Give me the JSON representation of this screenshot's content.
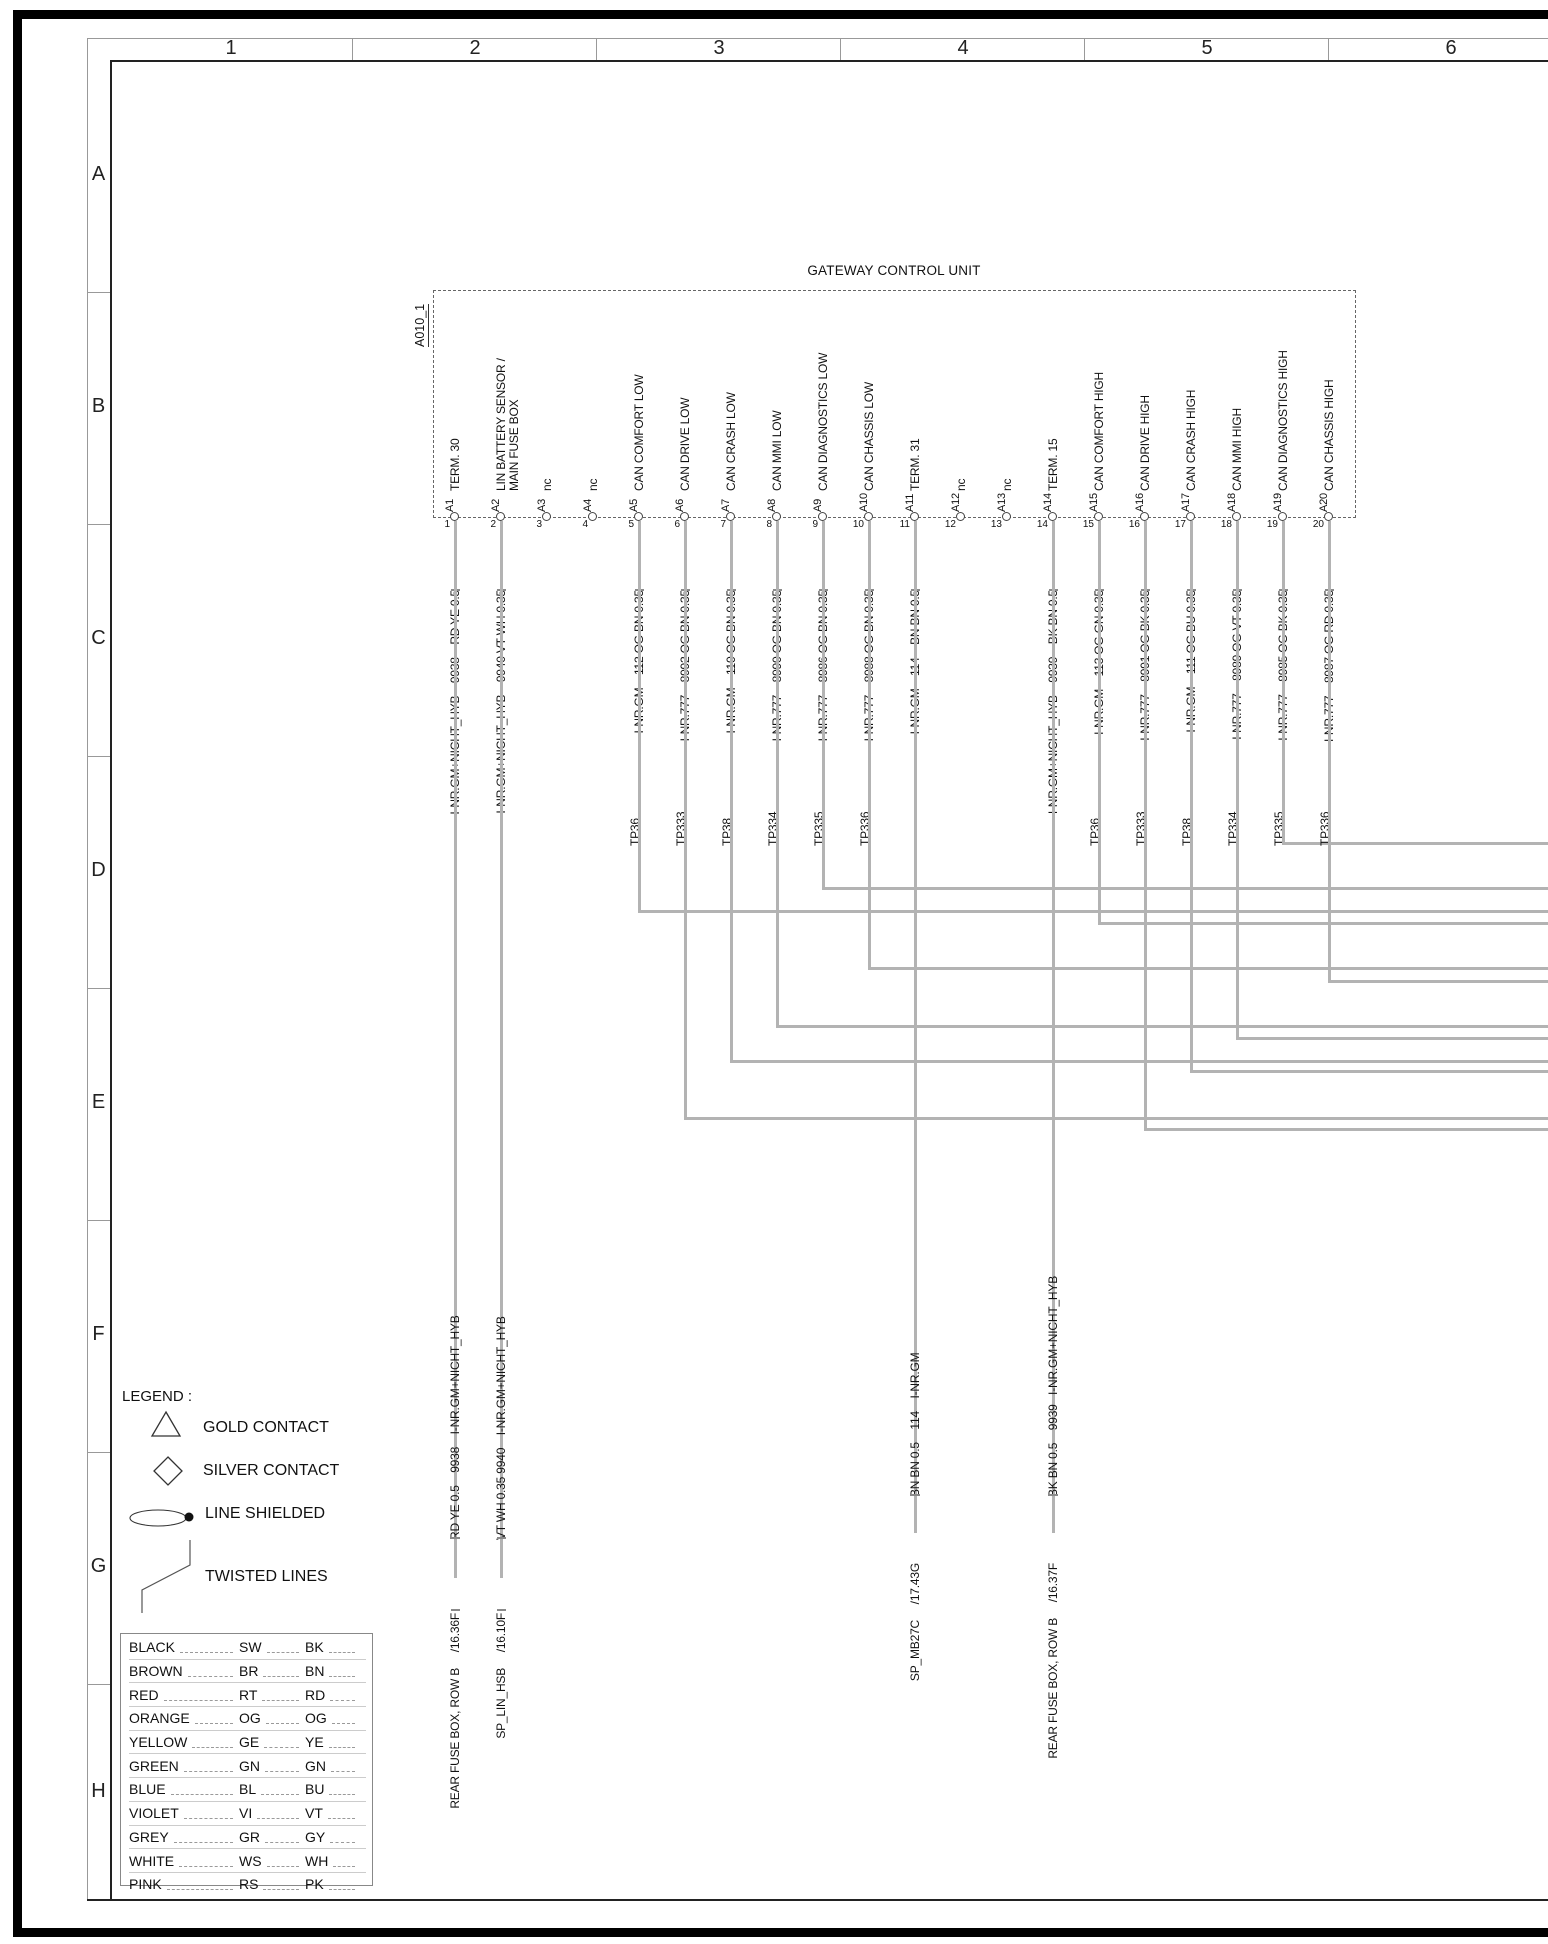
{
  "gateway": {
    "title": "GATEWAY CONTROL UNIT",
    "ref": "A010_1"
  },
  "ruler": {
    "columns": [
      "1",
      "2",
      "3",
      "4",
      "5",
      "6"
    ],
    "rows": [
      "A",
      "B",
      "C",
      "D",
      "E",
      "F",
      "G",
      "H"
    ]
  },
  "pins": [
    {
      "number": "1",
      "pin": "A1",
      "function": "TERM. 30",
      "wire_label": "I-NR.GM+NICHT_HYB    9938    RD YE 0.5",
      "tp": null,
      "lower_label": "RD YE 0.5    9938    I-NR.GM+NICHT_HYB",
      "destination": "REAR FUSE BOX, ROW B     /16.36F"
    },
    {
      "number": "2",
      "pin": "A2",
      "function": "LIN BATTERY SENSOR /\nMAIN FUSE BOX",
      "wire_label": "I-NR.GM+NICHT_HYB    9940 VT WH 0.35",
      "tp": null,
      "lower_label": "VT WH 0.35 9940    I-NR.GM+NICHT_HYB",
      "destination": "SP_LIN_HSB     /16.10F"
    },
    {
      "number": "3",
      "pin": "A3",
      "function": "nc",
      "wire_label": null,
      "tp": null,
      "lower_label": null,
      "destination": null
    },
    {
      "number": "4",
      "pin": "A4",
      "function": "nc",
      "wire_label": null,
      "tp": null,
      "lower_label": null,
      "destination": null
    },
    {
      "number": "5",
      "pin": "A5",
      "function": "CAN COMFORT LOW",
      "wire_label": "I-NR.GM    112 OG BN 0.35",
      "tp": "TP36",
      "lower_label": null,
      "destination": null
    },
    {
      "number": "6",
      "pin": "A6",
      "function": "CAN DRIVE LOW",
      "wire_label": "I-NR.777    8992 OG BN 0.35",
      "tp": "TP333",
      "lower_label": null,
      "destination": null
    },
    {
      "number": "7",
      "pin": "A7",
      "function": "CAN CRASH LOW",
      "wire_label": "I-NR.GM    110 OG BN 0.35",
      "tp": "TP38",
      "lower_label": null,
      "destination": null
    },
    {
      "number": "8",
      "pin": "A8",
      "function": "CAN MMI LOW",
      "wire_label": "I-NR.777    8990 OG BN 0.35",
      "tp": "TP334",
      "lower_label": null,
      "destination": null
    },
    {
      "number": "9",
      "pin": "A9",
      "function": "CAN DIAGNOSTICS LOW",
      "wire_label": "I-NR.777    8986 OG BN 0.35",
      "tp": "TP335",
      "lower_label": null,
      "destination": null
    },
    {
      "number": "10",
      "pin": "A10",
      "function": "CAN CHASSIS LOW",
      "wire_label": "I-NR.777    8988 OG BN 0.35",
      "tp": "TP336",
      "lower_label": null,
      "destination": null
    },
    {
      "number": "11",
      "pin": "A11",
      "function": "TERM. 31",
      "wire_label": "I-NR.GM    114    BN BN 0.5",
      "tp": null,
      "lower_label": "BN BN 0.5    114    I-NR.GM",
      "destination": "SP_MB27C     /17.43G"
    },
    {
      "number": "12",
      "pin": "A12",
      "function": "nc",
      "wire_label": null,
      "tp": null,
      "lower_label": null,
      "destination": null
    },
    {
      "number": "13",
      "pin": "A13",
      "function": "nc",
      "wire_label": null,
      "tp": null,
      "lower_label": null,
      "destination": null
    },
    {
      "number": "14",
      "pin": "A14",
      "function": "TERM. 15",
      "wire_label": "I-NR.GM+NICHT_HYB    9939    BK BN 0.5",
      "tp": null,
      "lower_label": "BK BN 0.5    9939   I-NR.GM+NICHT_HYB",
      "destination": "REAR FUSE BOX, ROW B     /16.37F"
    },
    {
      "number": "15",
      "pin": "A15",
      "function": "CAN COMFORT HIGH",
      "wire_label": "I-NR.GM    113 OG GN 0.35",
      "tp": "TP36",
      "lower_label": null,
      "destination": null
    },
    {
      "number": "16",
      "pin": "A16",
      "function": "CAN DRIVE HIGH",
      "wire_label": "I-NR.777    8991 OG BK 0.35",
      "tp": "TP333",
      "lower_label": null,
      "destination": null
    },
    {
      "number": "17",
      "pin": "A17",
      "function": "CAN CRASH HIGH",
      "wire_label": "I-NR.GM    111 OG BU 0.35",
      "tp": "TP38",
      "lower_label": null,
      "destination": null
    },
    {
      "number": "18",
      "pin": "A18",
      "function": "CAN MMI HIGH",
      "wire_label": "I-NR.777    8989 OG VT 0.35",
      "tp": "TP334",
      "lower_label": null,
      "destination": null
    },
    {
      "number": "19",
      "pin": "A19",
      "function": "CAN DIAGNOSTICS HIGH",
      "wire_label": "I-NR.777    8985 OG BK 0.35",
      "tp": "TP335",
      "lower_label": null,
      "destination": null
    },
    {
      "number": "20",
      "pin": "A20",
      "function": "CAN CHASSIS HIGH",
      "wire_label": "I-NR.777    8987 OG RD 0.35",
      "tp": "TP336",
      "lower_label": null,
      "destination": null
    }
  ],
  "legend": {
    "heading": "LEGEND :",
    "items": [
      {
        "icon": "gold-contact-icon",
        "label": "GOLD CONTACT"
      },
      {
        "icon": "silver-contact-icon",
        "label": "SILVER CONTACT"
      },
      {
        "icon": "line-shielded-icon",
        "label": "LINE SHIELDED"
      },
      {
        "icon": "twisted-lines-icon",
        "label": "TWISTED LINES"
      }
    ],
    "color_table": [
      [
        "BLACK",
        "SW",
        "BK"
      ],
      [
        "BROWN",
        "BR",
        "BN"
      ],
      [
        "RED",
        "RT",
        "RD"
      ],
      [
        "ORANGE",
        "OG",
        "OG"
      ],
      [
        "YELLOW",
        "GE",
        "YE"
      ],
      [
        "GREEN",
        "GN",
        "GN"
      ],
      [
        "BLUE",
        "BL",
        "BU"
      ],
      [
        "VIOLET",
        "VI",
        "VT"
      ],
      [
        "GREY",
        "GR",
        "GY"
      ],
      [
        "WHITE",
        "WS",
        "WH"
      ],
      [
        "PINK",
        "RS",
        "PK"
      ]
    ]
  },
  "colors": {
    "wire_gray": "#b3b3b3",
    "frame_dark": "#222222",
    "band_gray": "#999999"
  }
}
